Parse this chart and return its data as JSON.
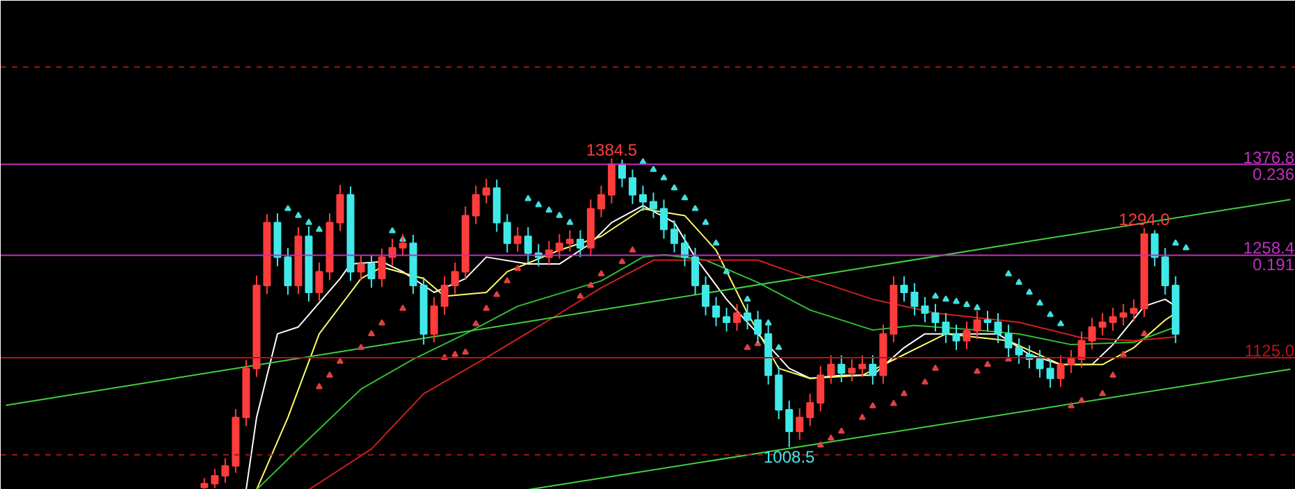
{
  "chart_data": {
    "type": "candlestick",
    "categories": [
      null,
      null,
      null,
      null,
      null,
      null,
      null,
      null,
      null,
      null,
      null,
      null,
      null,
      null,
      null,
      null,
      null,
      null,
      null,
      null,
      null,
      null,
      null,
      null,
      null,
      null,
      null,
      null,
      null,
      null,
      null,
      null,
      null,
      null,
      null,
      null,
      null,
      null,
      null,
      null,
      null,
      null,
      null,
      null,
      null,
      null,
      null,
      null,
      null,
      null,
      null,
      null,
      null,
      null,
      null,
      null,
      null,
      null,
      null,
      null,
      null,
      null,
      null,
      null,
      null,
      null,
      null,
      null,
      null,
      null,
      null,
      null,
      null,
      null,
      null,
      null,
      null,
      null,
      null,
      null,
      null,
      null,
      null,
      null,
      null,
      null,
      null,
      null,
      null,
      null,
      null,
      null,
      null,
      null,
      null,
      null,
      null,
      null,
      null,
      null,
      null,
      null,
      null,
      null,
      null,
      null,
      null,
      null,
      null,
      null,
      null,
      null,
      null,
      null,
      null,
      null,
      null,
      null,
      null,
      null,
      null,
      null,
      null,
      null
    ],
    "ohlc": [
      null,
      null,
      null,
      null,
      null,
      null,
      null,
      null,
      null,
      null,
      null,
      null,
      null,
      null,
      null,
      null,
      null,
      null,
      null,
      [
        956,
        968,
        954,
        961
      ],
      [
        961,
        980,
        955,
        971
      ],
      [
        971,
        994,
        962,
        984
      ],
      [
        984,
        1058,
        975,
        1047
      ],
      [
        1047,
        1122,
        1036,
        1111
      ],
      [
        1111,
        1232,
        1100,
        1219
      ],
      [
        1219,
        1312,
        1208,
        1301
      ],
      [
        1301,
        1313,
        1244,
        1256
      ],
      [
        1256,
        1268,
        1207,
        1219
      ],
      [
        1219,
        1295,
        1208,
        1283
      ],
      [
        1283,
        1296,
        1198,
        1210
      ],
      [
        1210,
        1249,
        1199,
        1237
      ],
      [
        1237,
        1313,
        1226,
        1301
      ],
      [
        1301,
        1350,
        1290,
        1337
      ],
      [
        1337,
        1348,
        1225,
        1237
      ],
      [
        1237,
        1258,
        1226,
        1247
      ],
      [
        1247,
        1259,
        1216,
        1228
      ],
      [
        1228,
        1267,
        1217,
        1256
      ],
      [
        1256,
        1280,
        1245,
        1268
      ],
      [
        1268,
        1286,
        1257,
        1274
      ],
      [
        1274,
        1285,
        1208,
        1219
      ],
      [
        1219,
        1230,
        1142,
        1156
      ],
      [
        1156,
        1204,
        1145,
        1192
      ],
      [
        1192,
        1231,
        1181,
        1219
      ],
      [
        1219,
        1249,
        1208,
        1237
      ],
      [
        1237,
        1322,
        1226,
        1310
      ],
      [
        1310,
        1349,
        1299,
        1337
      ],
      [
        1337,
        1358,
        1326,
        1346
      ],
      [
        1346,
        1357,
        1289,
        1301
      ],
      [
        1301,
        1312,
        1262,
        1274
      ],
      [
        1274,
        1295,
        1263,
        1283
      ],
      [
        1283,
        1295,
        1249,
        1261
      ],
      [
        1261,
        1273,
        1244,
        1256
      ],
      [
        1256,
        1277,
        1245,
        1265
      ],
      [
        1265,
        1286,
        1254,
        1274
      ],
      [
        1274,
        1291,
        1263,
        1279
      ],
      [
        1279,
        1291,
        1256,
        1268
      ],
      [
        1268,
        1331,
        1257,
        1319
      ],
      [
        1319,
        1349,
        1308,
        1337
      ],
      [
        1337,
        1384.5,
        1326,
        1377
      ],
      [
        1377,
        1383,
        1347,
        1359
      ],
      [
        1359,
        1370,
        1325,
        1337
      ],
      [
        1337,
        1349,
        1316,
        1328
      ],
      [
        1328,
        1340,
        1307,
        1319
      ],
      [
        1319,
        1331,
        1280,
        1292
      ],
      [
        1292,
        1304,
        1262,
        1274
      ],
      [
        1274,
        1286,
        1244,
        1256
      ],
      [
        1256,
        1268,
        1207,
        1219
      ],
      [
        1219,
        1231,
        1180,
        1192
      ],
      [
        1192,
        1204,
        1166,
        1178
      ],
      [
        1178,
        1190,
        1159,
        1171
      ],
      [
        1171,
        1195,
        1160,
        1183
      ],
      [
        1183,
        1195,
        1162,
        1174
      ],
      [
        1174,
        1186,
        1144,
        1156
      ],
      [
        1156,
        1168,
        1090,
        1102
      ],
      [
        1102,
        1114,
        1045,
        1057
      ],
      [
        1057,
        1069,
        1008.5,
        1029
      ],
      [
        1029,
        1059,
        1018,
        1047
      ],
      [
        1047,
        1078,
        1036,
        1066
      ],
      [
        1066,
        1114,
        1055,
        1102
      ],
      [
        1102,
        1128,
        1091,
        1116
      ],
      [
        1116,
        1128,
        1093,
        1105
      ],
      [
        1105,
        1123,
        1094,
        1111
      ],
      [
        1111,
        1128,
        1100,
        1116
      ],
      [
        1116,
        1128,
        1090,
        1102
      ],
      [
        1102,
        1168,
        1091,
        1156
      ],
      [
        1156,
        1231,
        1145,
        1219
      ],
      [
        1219,
        1231,
        1198,
        1210
      ],
      [
        1210,
        1222,
        1180,
        1192
      ],
      [
        1192,
        1204,
        1171,
        1183
      ],
      [
        1183,
        1195,
        1159,
        1171
      ],
      [
        1171,
        1183,
        1144,
        1156
      ],
      [
        1156,
        1168,
        1135,
        1147
      ],
      [
        1147,
        1172,
        1136,
        1160
      ],
      [
        1160,
        1186,
        1149,
        1174
      ],
      [
        1174,
        1186,
        1159,
        1171
      ],
      [
        1171,
        1183,
        1144,
        1156
      ],
      [
        1156,
        1168,
        1126,
        1138
      ],
      [
        1138,
        1150,
        1117,
        1129
      ],
      [
        1129,
        1141,
        1111,
        1123
      ],
      [
        1123,
        1135,
        1099,
        1111
      ],
      [
        1111,
        1123,
        1086,
        1098
      ],
      [
        1098,
        1128,
        1087,
        1116
      ],
      [
        1116,
        1135,
        1105,
        1123
      ],
      [
        1123,
        1159,
        1112,
        1147
      ],
      [
        1147,
        1177,
        1136,
        1165
      ],
      [
        1165,
        1183,
        1154,
        1171
      ],
      [
        1171,
        1190,
        1160,
        1178
      ],
      [
        1178,
        1195,
        1167,
        1183
      ],
      [
        1183,
        1201,
        1172,
        1189
      ],
      [
        1189,
        1294,
        1178,
        1286
      ],
      [
        1286,
        1291,
        1244,
        1256
      ],
      [
        1256,
        1268,
        1207,
        1219
      ],
      [
        1219,
        1231,
        1144,
        1156
      ],
      null,
      null,
      null,
      null,
      null,
      null,
      null,
      null,
      null,
      null,
      null
    ],
    "series": [
      {
        "type": "line",
        "color": "#ffffff",
        "values": [
          null,
          null,
          null,
          null,
          null,
          null,
          null,
          null,
          null,
          null,
          null,
          null,
          null,
          null,
          null,
          null,
          null,
          null,
          null,
          null,
          null,
          null,
          null,
          953,
          1047,
          null,
          1156,
          null,
          1165,
          null,
          null,
          null,
          1228,
          1247,
          null,
          null,
          1250,
          null,
          1237,
          null,
          null,
          1210,
          null,
          null,
          1228,
          null,
          1256,
          null,
          null,
          null,
          1247,
          null,
          null,
          1247,
          null,
          null,
          1274,
          null,
          1301,
          null,
          null,
          1323,
          null,
          null,
          1301,
          null,
          1256,
          null,
          null,
          1201,
          null,
          null,
          1156,
          null,
          null,
          1111,
          null,
          1098,
          null,
          null,
          1102,
          null,
          null,
          1102,
          null,
          null,
          1138,
          null,
          1156,
          null,
          null,
          null,
          1156,
          null,
          null,
          1156,
          null,
          null,
          1129,
          null,
          null,
          1116,
          null,
          null,
          1116,
          null,
          1142,
          null,
          null,
          1192,
          null,
          1201,
          1192,
          null,
          null,
          null,
          null,
          null,
          null,
          null,
          null,
          null,
          null,
          null
        ]
      },
      {
        "type": "line",
        "color": "#ffff66",
        "values": [
          null,
          null,
          null,
          null,
          null,
          null,
          null,
          null,
          null,
          null,
          null,
          null,
          null,
          null,
          null,
          null,
          null,
          null,
          null,
          null,
          null,
          null,
          null,
          null,
          953,
          null,
          null,
          1047,
          null,
          null,
          1156,
          null,
          null,
          null,
          1228,
          null,
          1243,
          null,
          null,
          null,
          1228,
          null,
          1205,
          null,
          null,
          null,
          1210,
          null,
          1237,
          null,
          null,
          null,
          null,
          1265,
          null,
          null,
          null,
          1283,
          null,
          null,
          null,
          1319,
          null,
          null,
          null,
          1310,
          null,
          null,
          1265,
          null,
          null,
          1183,
          null,
          null,
          1111,
          null,
          null,
          1098,
          null,
          null,
          null,
          null,
          1102,
          null,
          null,
          null,
          1129,
          null,
          null,
          null,
          1156,
          null,
          null,
          null,
          null,
          null,
          1147,
          null,
          null,
          null,
          null,
          1116,
          null,
          null,
          null,
          1116,
          null,
          null,
          1138,
          null,
          null,
          1174,
          1183,
          null,
          null,
          null,
          null,
          null,
          null,
          null,
          null,
          null,
          null,
          null
        ]
      },
      {
        "type": "line",
        "color": "#30c030",
        "values": [
          null,
          null,
          null,
          null,
          null,
          null,
          null,
          null,
          null,
          null,
          null,
          null,
          null,
          null,
          null,
          null,
          null,
          null,
          null,
          null,
          null,
          null,
          null,
          null,
          953,
          null,
          null,
          null,
          1006,
          null,
          null,
          null,
          null,
          null,
          1084,
          null,
          null,
          null,
          null,
          1123,
          null,
          null,
          null,
          null,
          1156,
          null,
          null,
          null,
          null,
          1192,
          null,
          null,
          null,
          null,
          null,
          null,
          null,
          1225,
          null,
          null,
          null,
          1256,
          null,
          1259,
          null,
          null,
          null,
          1252,
          null,
          null,
          null,
          null,
          1223,
          null,
          null,
          null,
          null,
          1187,
          null,
          null,
          null,
          null,
          null,
          1161,
          null,
          null,
          null,
          1167,
          null,
          null,
          null,
          null,
          null,
          1161,
          null,
          null,
          null,
          1156,
          null,
          null,
          null,
          null,
          1142,
          null,
          null,
          null,
          null,
          null,
          1145,
          null,
          null,
          null,
          1165,
          null,
          null,
          null,
          null,
          null,
          null,
          null,
          null,
          null,
          null,
          null
        ]
      },
      {
        "type": "line",
        "color": "#d02020",
        "values": [
          null,
          null,
          null,
          null,
          null,
          null,
          null,
          null,
          null,
          null,
          null,
          null,
          null,
          null,
          null,
          null,
          null,
          null,
          null,
          null,
          null,
          null,
          null,
          null,
          null,
          null,
          null,
          null,
          null,
          953,
          null,
          null,
          null,
          null,
          null,
          1006,
          null,
          null,
          null,
          null,
          1078,
          null,
          null,
          null,
          null,
          null,
          1125,
          null,
          null,
          null,
          null,
          null,
          1174,
          null,
          null,
          null,
          null,
          1216,
          null,
          null,
          null,
          null,
          1252,
          null,
          null,
          null,
          null,
          null,
          null,
          null,
          null,
          null,
          1252,
          null,
          null,
          null,
          null,
          1228,
          null,
          null,
          null,
          null,
          null,
          1201,
          null,
          null,
          null,
          null,
          null,
          1183,
          null,
          null,
          null,
          null,
          null,
          null,
          null,
          1171,
          null,
          null,
          null,
          null,
          null,
          1151,
          null,
          null,
          null,
          null,
          1147,
          null,
          null,
          null,
          1152,
          null,
          null,
          null,
          null,
          null,
          null,
          null,
          null,
          null,
          null,
          null
        ]
      },
      {
        "type": "line",
        "color": "#40d040",
        "values": [
          1063,
          null,
          null,
          null,
          null,
          null,
          null,
          null,
          null,
          null,
          null,
          null,
          null,
          null,
          null,
          null,
          null,
          null,
          null,
          null,
          null,
          null,
          null,
          null,
          null,
          null,
          null,
          null,
          null,
          null,
          null,
          null,
          null,
          null,
          null,
          null,
          null,
          null,
          null,
          null,
          null,
          null,
          null,
          null,
          null,
          null,
          null,
          null,
          null,
          null,
          null,
          null,
          null,
          null,
          null,
          null,
          null,
          null,
          null,
          null,
          null,
          null,
          null,
          null,
          null,
          null,
          null,
          null,
          null,
          null,
          null,
          null,
          null,
          null,
          null,
          null,
          null,
          null,
          null,
          null,
          null,
          null,
          null,
          null,
          null,
          null,
          null,
          null,
          null,
          null,
          null,
          null,
          null,
          null,
          null,
          null,
          null,
          null,
          null,
          null,
          null,
          null,
          null,
          null,
          null,
          null,
          null,
          null,
          null,
          null,
          null,
          null,
          null,
          null,
          null,
          null,
          null,
          null,
          null,
          null,
          null,
          null,
          null,
          1331
        ]
      },
      {
        "type": "line",
        "color": "#40d040",
        "values": [
          null,
          null,
          null,
          null,
          null,
          null,
          null,
          null,
          null,
          null,
          null,
          null,
          null,
          null,
          null,
          null,
          null,
          null,
          null,
          null,
          null,
          null,
          null,
          null,
          null,
          null,
          null,
          null,
          null,
          null,
          null,
          null,
          null,
          null,
          null,
          null,
          null,
          null,
          null,
          null,
          null,
          null,
          null,
          null,
          null,
          null,
          null,
          null,
          null,
          null,
          953,
          null,
          null,
          null,
          null,
          null,
          null,
          null,
          null,
          null,
          null,
          null,
          null,
          null,
          null,
          null,
          null,
          null,
          null,
          null,
          null,
          null,
          null,
          null,
          null,
          null,
          null,
          null,
          null,
          null,
          null,
          null,
          null,
          null,
          null,
          null,
          null,
          null,
          null,
          null,
          null,
          null,
          null,
          null,
          null,
          null,
          null,
          null,
          null,
          null,
          null,
          null,
          null,
          null,
          null,
          null,
          null,
          null,
          null,
          null,
          null,
          null,
          null,
          null,
          null,
          null,
          null,
          null,
          null,
          null,
          null,
          null,
          null,
          1110
        ]
      },
      {
        "type": "scatter",
        "marker": "triangle",
        "color": "#40e0e0",
        "values": [
          null,
          null,
          null,
          null,
          null,
          null,
          null,
          null,
          null,
          null,
          null,
          null,
          null,
          null,
          null,
          null,
          null,
          null,
          null,
          null,
          null,
          null,
          null,
          null,
          null,
          null,
          null,
          1319,
          1310,
          1301,
          1292,
          null,
          null,
          null,
          null,
          null,
          null,
          1290,
          1279,
          null,
          null,
          null,
          null,
          null,
          null,
          null,
          null,
          null,
          null,
          null,
          1332,
          1324,
          1317,
          1310,
          1301,
          null,
          null,
          null,
          null,
          null,
          null,
          1380,
          1370,
          1359,
          1346,
          1333,
          1319,
          1301,
          1274,
          1237,
          null,
          1201,
          null,
          1170,
          1138,
          null,
          null,
          null,
          null,
          null,
          null,
          null,
          null,
          null,
          null,
          null,
          null,
          null,
          null,
          1205,
          1201,
          1198,
          1194,
          1190,
          null,
          null,
          1234,
          1223,
          1210,
          1196,
          1181,
          1169,
          null,
          null,
          null,
          null,
          null,
          null,
          null,
          null,
          null,
          null,
          1274,
          1268,
          null,
          null,
          null,
          null,
          null,
          null,
          null,
          null,
          null,
          null
        ]
      },
      {
        "type": "scatter",
        "marker": "triangle",
        "color": "#e04040",
        "values": [
          null,
          null,
          null,
          null,
          null,
          null,
          null,
          null,
          null,
          null,
          null,
          null,
          null,
          null,
          null,
          null,
          null,
          null,
          null,
          null,
          null,
          null,
          null,
          null,
          null,
          null,
          null,
          null,
          null,
          null,
          1087,
          1102,
          1120,
          null,
          1138,
          1156,
          1170,
          null,
          1189,
          null,
          null,
          null,
          1125,
          1129,
          1132,
          1169,
          1189,
          1207,
          1225,
          1241,
          null,
          null,
          null,
          null,
          null,
          1205,
          1219,
          1234,
          null,
          1250,
          1265,
          null,
          null,
          null,
          null,
          null,
          null,
          null,
          null,
          null,
          null,
          1138,
          1143,
          null,
          null,
          null,
          null,
          null,
          1011,
          1020,
          1029,
          null,
          1047,
          1062,
          null,
          1065,
          1078,
          null,
          1093,
          1111,
          null,
          null,
          null,
          1107,
          1116,
          null,
          1123,
          null,
          null,
          null,
          null,
          null,
          1062,
          1069,
          null,
          1078,
          1102,
          1129,
          null,
          1156,
          null,
          null,
          null,
          null,
          null,
          null,
          null,
          null,
          null,
          null,
          null,
          null,
          null,
          null
        ]
      }
    ],
    "ylim": [
      953,
      1590
    ],
    "tick_labels": false,
    "ref_lines": [
      {
        "axis": "y",
        "value": 1503.5,
        "color": "#a01818",
        "line_style": "dashed"
      },
      {
        "axis": "y",
        "value": 1376.8,
        "label": "1376.8",
        "color": "#c030c0"
      },
      {
        "axis": "y",
        "value": 1258.4,
        "label": "1258.4",
        "color": "#c030c0"
      },
      {
        "axis": "y",
        "value": 1125.0,
        "label": "1125.0",
        "color": "#c01010"
      },
      {
        "axis": "y",
        "value": 998.5,
        "color": "#a01818",
        "line_style": "dashed"
      }
    ],
    "annotations": [
      {
        "text": "1384.5",
        "y": 1384.5
      },
      {
        "text": "1294.0",
        "y": 1294.0
      },
      {
        "text": "1008.5",
        "y": 1008.5
      },
      {
        "text": "0.236",
        "y": 1376.8
      },
      {
        "text": "0.191",
        "y": 1258.4
      }
    ]
  }
}
